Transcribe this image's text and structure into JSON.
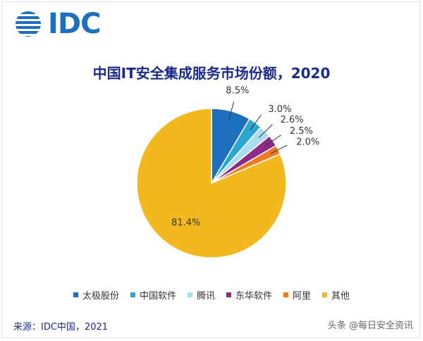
{
  "header": {
    "logo_text": "IDC"
  },
  "chart_data": {
    "type": "pie",
    "title": "中国IT安全集成服务市场份额，2020",
    "categories": [
      "太极股份",
      "中国软件",
      "腾讯",
      "东华软件",
      "阿里",
      "其他"
    ],
    "values": [
      8.5,
      3.0,
      2.6,
      2.5,
      2.0,
      81.4
    ],
    "labels": [
      "8.5%",
      "3.0%",
      "2.6%",
      "2.5%",
      "2.0%",
      "81.4%"
    ],
    "colors": [
      "#1f6fbf",
      "#2aa7cf",
      "#a9dcef",
      "#8e2a86",
      "#ee7a22",
      "#f3b81d"
    ],
    "legend_position": "bottom"
  },
  "footer": {
    "source": "来源：IDC中国，2021",
    "watermark": "头条 @每日安全资讯"
  }
}
